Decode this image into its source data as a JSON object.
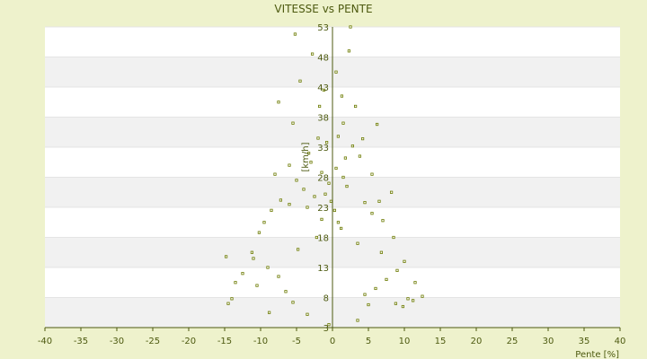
{
  "chart_data": {
    "type": "scatter",
    "title": "VITESSE vs PENTE",
    "xlabel": "Pente [%]",
    "ylabel": "[km/h]",
    "xlim": [
      -40,
      40
    ],
    "ylim": [
      3,
      53
    ],
    "x_ticks": [
      -40,
      -35,
      -30,
      -25,
      -20,
      -15,
      -10,
      -5,
      0,
      5,
      10,
      15,
      20,
      25,
      30,
      35,
      40
    ],
    "y_ticks": [
      3,
      8,
      13,
      18,
      23,
      28,
      33,
      38,
      43,
      48,
      53
    ],
    "x_tick_labels": [
      "-40",
      "-35",
      "-30",
      "-25",
      "-20",
      "-15",
      "-10",
      "-5",
      "0",
      "5",
      "10",
      "15",
      "20",
      "25",
      "30",
      "35",
      "40"
    ],
    "y_tick_labels": [
      "3",
      "8",
      "13",
      "18",
      "23",
      "28",
      "33",
      "38",
      "43",
      "48",
      "53"
    ],
    "grid": true,
    "legend": "none",
    "marker_color": "#6b7a00",
    "band_colors": [
      "#ffffff",
      "#f1f1f1"
    ],
    "points": [
      [
        -5.2,
        51.8
      ],
      [
        2.5,
        53.0
      ],
      [
        2.3,
        49.0
      ],
      [
        -2.8,
        48.5
      ],
      [
        -4.5,
        44.0
      ],
      [
        0.5,
        45.5
      ],
      [
        -1.2,
        42.5
      ],
      [
        1.3,
        41.5
      ],
      [
        -7.5,
        40.5
      ],
      [
        -1.8,
        39.8
      ],
      [
        3.2,
        39.8
      ],
      [
        -5.5,
        37.0
      ],
      [
        1.5,
        37.0
      ],
      [
        6.2,
        36.8
      ],
      [
        -2.0,
        34.5
      ],
      [
        -0.8,
        33.8
      ],
      [
        0.8,
        34.8
      ],
      [
        4.2,
        34.4
      ],
      [
        -3.3,
        32.0
      ],
      [
        2.8,
        33.2
      ],
      [
        1.8,
        31.2
      ],
      [
        -6.0,
        30.0
      ],
      [
        -3.0,
        30.5
      ],
      [
        3.8,
        31.5
      ],
      [
        -8.0,
        28.5
      ],
      [
        -1.5,
        28.8
      ],
      [
        0.5,
        29.5
      ],
      [
        1.5,
        28.0
      ],
      [
        5.5,
        28.5
      ],
      [
        -5.0,
        27.5
      ],
      [
        -0.5,
        27.0
      ],
      [
        8.2,
        25.5
      ],
      [
        -4.0,
        26.0
      ],
      [
        2.0,
        26.5
      ],
      [
        -7.2,
        24.2
      ],
      [
        -2.5,
        24.8
      ],
      [
        6.5,
        24.0
      ],
      [
        -6.0,
        23.5
      ],
      [
        4.5,
        23.8
      ],
      [
        -1.0,
        25.2
      ],
      [
        -8.5,
        22.5
      ],
      [
        5.5,
        22.0
      ],
      [
        -3.5,
        23.0
      ],
      [
        -9.5,
        20.5
      ],
      [
        7.0,
        20.8
      ],
      [
        -10.2,
        18.8
      ],
      [
        8.5,
        18.0
      ],
      [
        -14.8,
        14.8
      ],
      [
        -11.2,
        15.5
      ],
      [
        -12.5,
        12.0
      ],
      [
        -13.5,
        10.5
      ],
      [
        -10.5,
        10.0
      ],
      [
        -14.0,
        7.8
      ],
      [
        -14.5,
        7.0
      ],
      [
        -8.8,
        5.5
      ],
      [
        11.5,
        10.5
      ],
      [
        12.5,
        8.2
      ],
      [
        11.2,
        7.5
      ],
      [
        10.5,
        7.8
      ],
      [
        9.8,
        6.5
      ],
      [
        8.8,
        7.0
      ],
      [
        -3.5,
        5.2
      ],
      [
        3.5,
        4.2
      ],
      [
        -0.5,
        3.5
      ],
      [
        5.0,
        6.8
      ],
      [
        -5.5,
        7.2
      ],
      [
        4.5,
        8.5
      ],
      [
        -6.5,
        9.0
      ],
      [
        6.0,
        9.5
      ],
      [
        7.5,
        11.0
      ],
      [
        -7.5,
        11.5
      ],
      [
        9.0,
        12.5
      ],
      [
        -9.0,
        13.0
      ],
      [
        10.0,
        14.0
      ],
      [
        -11.0,
        14.5
      ],
      [
        6.8,
        15.5
      ],
      [
        -4.8,
        16.0
      ],
      [
        3.5,
        17.0
      ],
      [
        -2.2,
        18.0
      ],
      [
        1.2,
        19.5
      ],
      [
        -1.5,
        21.0
      ],
      [
        0.3,
        22.5
      ],
      [
        -0.2,
        24.0
      ],
      [
        0.8,
        20.5
      ]
    ]
  }
}
